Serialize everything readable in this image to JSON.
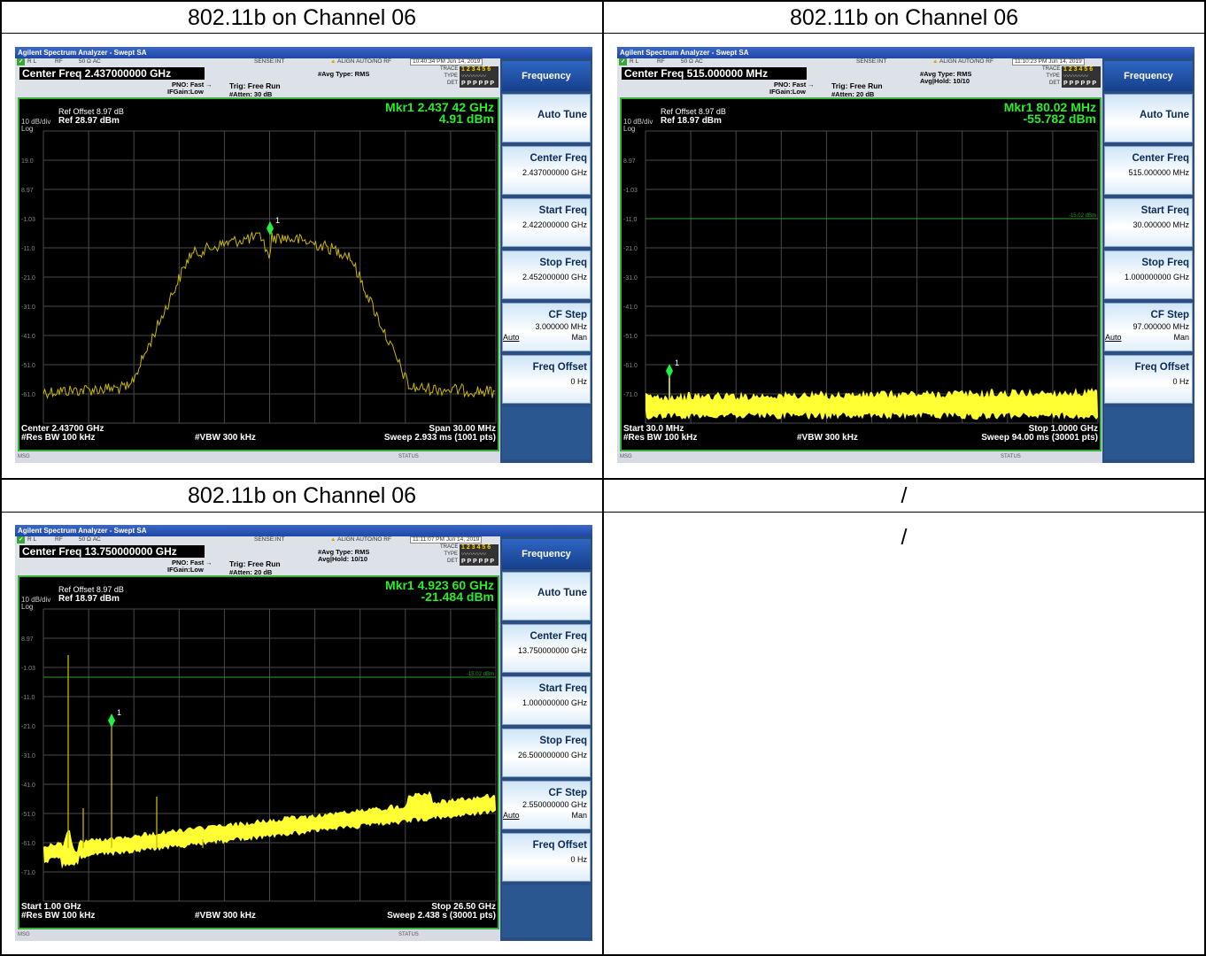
{
  "cells": [
    {
      "title": "802.11b on Channel 06"
    },
    {
      "title": "802.11b on Channel 06"
    },
    {
      "title": "802.11b on Channel 06"
    },
    {
      "title": "/"
    }
  ],
  "empty_cell_text": "/",
  "analyzers": [
    {
      "window_title": "Agilent Spectrum Analyzer - Swept SA",
      "status_bar": {
        "rl": "R L",
        "rf": "RF",
        "ohm": "50 Ω  AC",
        "sense": "SENSE:INT",
        "align": "ALIGN AUTO/NO RF",
        "time": "10:40:34 PM Jun 14, 2019"
      },
      "center_freq": "Center Freq 2.437000000 GHz",
      "pno": "PNO: Fast",
      "ifgain": "IFGain:Low",
      "trig": "Trig: Free Run",
      "atten": "#Atten: 30 dB",
      "avg_type": "#Avg Type: RMS",
      "avg_hold": "",
      "trace_labels": {
        "trace": "TRACE",
        "type": "TYPE",
        "det": "DET"
      },
      "trace_digits": "1 2 3 4 5 6",
      "det_letters": "P P P P P P",
      "ref_offset": "Ref Offset 8.97 dB",
      "scale": "10 dB/div",
      "ref_level": "Ref 28.97 dBm",
      "log": "Log",
      "marker_line1": "Mkr1 2.437 42 GHz",
      "marker_line2": "4.91 dBm",
      "marker_label": "1",
      "ylabels": [
        "19.0",
        "8.97",
        "-1.03",
        "-11.0",
        "-21.0",
        "-31.0",
        "-41.0",
        "-51.0",
        "-61.0"
      ],
      "threshold_label": "",
      "bottom_left1": "Center 2.43700 GHz",
      "bottom_left2": "#Res BW 100 kHz",
      "bottom_mid": "#VBW 300 kHz",
      "bottom_right1": "Span 30.00 MHz",
      "bottom_right2": "Sweep  2.933 ms (1001 pts)",
      "msg": "MSG",
      "status": "STATUS",
      "menu": {
        "title": "Frequency",
        "auto_tune": "Auto Tune",
        "center_freq_label": "Center Freq",
        "center_freq_value": "2.437000000 GHz",
        "start_freq_label": "Start Freq",
        "start_freq_value": "2.422000000 GHz",
        "stop_freq_label": "Stop Freq",
        "stop_freq_value": "2.452000000 GHz",
        "cf_step_label": "CF Step",
        "cf_step_value": "3.000000 MHz",
        "cf_auto": "Auto",
        "cf_man": "Man",
        "freq_offset_label": "Freq Offset",
        "freq_offset_value": "0 Hz"
      }
    },
    {
      "window_title": "Agilent Spectrum Analyzer - Swept SA",
      "status_bar": {
        "rl": "R L",
        "rf": "RF",
        "ohm": "50 Ω  AC",
        "sense": "SENSE:INT",
        "align": "ALIGN AUTO/NO RF",
        "time": "11:10:23 PM Jun 14, 2019"
      },
      "center_freq": "Center Freq 515.000000 MHz",
      "pno": "PNO: Fast",
      "ifgain": "IFGain:Low",
      "trig": "Trig: Free Run",
      "atten": "#Atten: 20 dB",
      "avg_type": "#Avg Type: RMS",
      "avg_hold": "Avg|Hold: 10/10",
      "trace_labels": {
        "trace": "TRACE",
        "type": "TYPE",
        "det": "DET"
      },
      "trace_digits": "1 2 3 4 5 6",
      "det_letters": "P P P P P P",
      "ref_offset": "Ref Offset 8.97 dB",
      "scale": "10 dB/div",
      "ref_level": "Ref 18.97 dBm",
      "log": "Log",
      "marker_line1": "Mkr1 80.02 MHz",
      "marker_line2": "-55.782 dBm",
      "marker_label": "1",
      "ylabels": [
        "8.97",
        "-1.03",
        "-11.0",
        "-21.0",
        "-31.0",
        "-41.0",
        "-51.0",
        "-61.0",
        "-71.0"
      ],
      "threshold_label": "-15.02 dBm",
      "bottom_left1": "Start 30.0 MHz",
      "bottom_left2": "#Res BW 100 kHz",
      "bottom_mid": "#VBW 300 kHz",
      "bottom_right1": "Stop 1.0000 GHz",
      "bottom_right2": "Sweep  94.00 ms (30001 pts)",
      "msg": "MSG",
      "status": "STATUS",
      "menu": {
        "title": "Frequency",
        "auto_tune": "Auto Tune",
        "center_freq_label": "Center Freq",
        "center_freq_value": "515.000000 MHz",
        "start_freq_label": "Start Freq",
        "start_freq_value": "30.000000 MHz",
        "stop_freq_label": "Stop Freq",
        "stop_freq_value": "1.000000000 GHz",
        "cf_step_label": "CF Step",
        "cf_step_value": "97.000000 MHz",
        "cf_auto": "Auto",
        "cf_man": "Man",
        "freq_offset_label": "Freq Offset",
        "freq_offset_value": "0 Hz"
      }
    },
    {
      "window_title": "Agilent Spectrum Analyzer - Swept SA",
      "status_bar": {
        "rl": "R L",
        "rf": "RF",
        "ohm": "50 Ω  AC",
        "sense": "SENSE:INT",
        "align": "ALIGN AUTO/NO RF",
        "time": "11:11:07 PM Jun 14, 2019"
      },
      "center_freq": "Center Freq 13.750000000 GHz",
      "pno": "PNO: Fast",
      "ifgain": "IFGain:Low",
      "trig": "Trig: Free Run",
      "atten": "#Atten: 20 dB",
      "avg_type": "#Avg Type: RMS",
      "avg_hold": "Avg|Hold: 10/10",
      "trace_labels": {
        "trace": "TRACE",
        "type": "TYPE",
        "det": "DET"
      },
      "trace_digits": "1 2 3 4 5 6",
      "det_letters": "P P P P P P",
      "ref_offset": "Ref Offset 8.97 dB",
      "scale": "10 dB/div",
      "ref_level": "Ref 18.97 dBm",
      "log": "Log",
      "marker_line1": "Mkr1 4.923 60 GHz",
      "marker_line2": "-21.484 dBm",
      "marker_label": "1",
      "ylabels": [
        "8.97",
        "-1.03",
        "-11.0",
        "-21.0",
        "-31.0",
        "-41.0",
        "-51.0",
        "-61.0",
        "-71.0"
      ],
      "threshold_label": "-15.02 dBm",
      "bottom_left1": "Start 1.00 GHz",
      "bottom_left2": "#Res BW 100 kHz",
      "bottom_mid": "#VBW 300 kHz",
      "bottom_right1": "Stop 26.50 GHz",
      "bottom_right2": "Sweep  2.438 s (30001 pts)",
      "msg": "MSG",
      "status": "STATUS",
      "menu": {
        "title": "Frequency",
        "auto_tune": "Auto Tune",
        "center_freq_label": "Center Freq",
        "center_freq_value": "13.750000000 GHz",
        "start_freq_label": "Start Freq",
        "start_freq_value": "1.000000000 GHz",
        "stop_freq_label": "Stop Freq",
        "stop_freq_value": "26.500000000 GHz",
        "cf_step_label": "CF Step",
        "cf_step_value": "2.550000000 GHz",
        "cf_auto": "Auto",
        "cf_man": "Man",
        "freq_offset_label": "Freq Offset",
        "freq_offset_value": "0 Hz"
      }
    }
  ]
}
